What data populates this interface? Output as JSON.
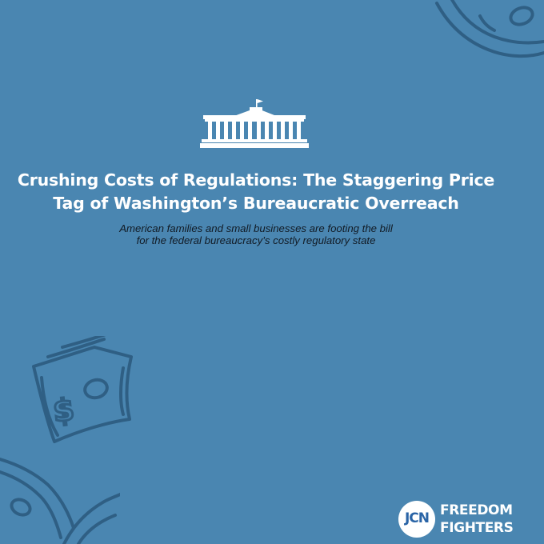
{
  "background_color": "#4a86b1",
  "decorative_icons": [
    "money-bill-icon",
    "white-house-icon"
  ],
  "headline": {
    "line1": "Crushing Costs of Regulations: The Staggering Price",
    "line2": "Tag of Washington’s Bureaucratic Overreach"
  },
  "subheadline": {
    "line1": "American families and small businesses are footing the bill",
    "line2": "for the federal bureaucracy’s costly regulatory state"
  },
  "logo": {
    "badge": "JCN",
    "word1": "FREEDOM",
    "word2": "FIGHTERS"
  },
  "colors": {
    "headline": "#ffffff",
    "subheadline": "#111a24",
    "bill_outline": "#2f5f84",
    "logo_badge": "#2a64a6"
  }
}
